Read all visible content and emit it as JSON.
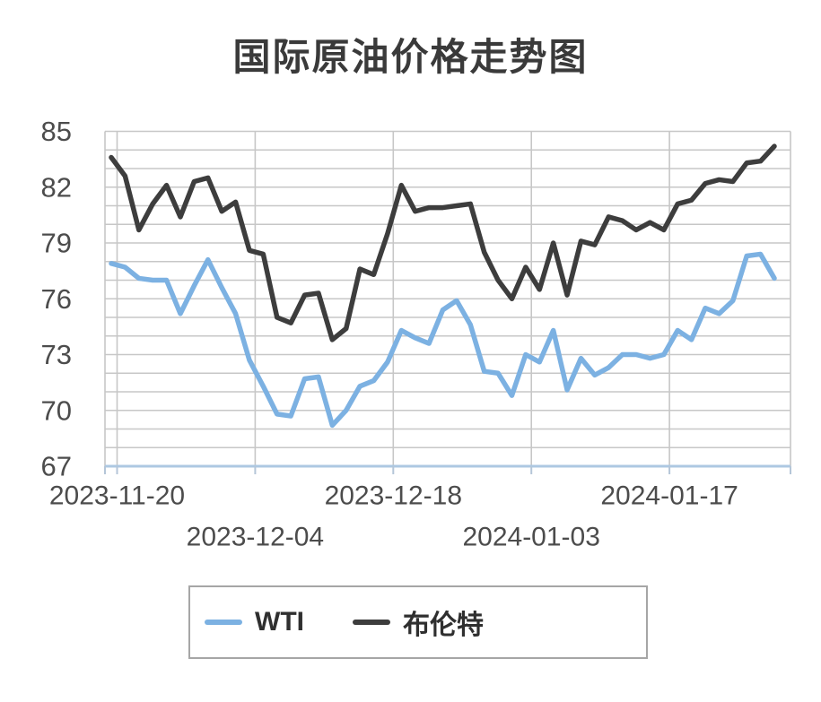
{
  "page": {
    "background": "#ffffff"
  },
  "chart": {
    "title": "国际原油价格走势图"
  },
  "chart_data": {
    "type": "line",
    "title": "国际原油价格走势图",
    "xlabel": "",
    "ylabel": "",
    "ylim": [
      67,
      85
    ],
    "y_ticks": [
      67,
      70,
      73,
      76,
      79,
      82,
      85
    ],
    "y_minor_step": 1,
    "grid": true,
    "legend_position": "bottom",
    "axis_line_color": "#adc8e2",
    "x_tick_labels": [
      "2023-11-20",
      "2023-12-04",
      "2023-12-18",
      "2024-01-03",
      "2024-01-17"
    ],
    "x_label_rows": [
      1,
      2,
      1,
      2,
      1
    ],
    "series": [
      {
        "name": "WTI",
        "color": "#7cb1e2",
        "values": [
          77.9,
          77.7,
          77.1,
          77.0,
          77.0,
          75.2,
          76.7,
          78.1,
          76.6,
          75.2,
          72.7,
          71.3,
          69.8,
          69.7,
          71.7,
          71.8,
          69.2,
          70.0,
          71.3,
          71.6,
          72.6,
          74.3,
          73.9,
          73.6,
          75.4,
          75.9,
          74.6,
          72.1,
          72.0,
          70.8,
          73.0,
          72.6,
          74.3,
          71.1,
          72.8,
          71.9,
          72.3,
          73.0,
          73.0,
          72.8,
          73.0,
          74.3,
          73.8,
          75.5,
          75.2,
          75.9,
          78.3,
          78.4,
          77.1
        ]
      },
      {
        "name": "布伦特",
        "color": "#3d3d3d",
        "values": [
          83.6,
          82.6,
          79.7,
          81.1,
          82.1,
          80.4,
          82.3,
          82.5,
          80.7,
          81.2,
          78.6,
          78.4,
          75.0,
          74.7,
          76.2,
          76.3,
          73.8,
          74.4,
          77.6,
          77.3,
          79.5,
          82.1,
          80.7,
          80.9,
          80.9,
          81.0,
          81.1,
          78.5,
          77.0,
          76.0,
          77.7,
          76.5,
          79.0,
          76.2,
          79.1,
          78.9,
          80.4,
          80.2,
          79.7,
          80.1,
          79.7,
          81.1,
          81.3,
          82.2,
          82.4,
          82.3,
          83.3,
          83.4,
          84.2
        ]
      }
    ]
  }
}
